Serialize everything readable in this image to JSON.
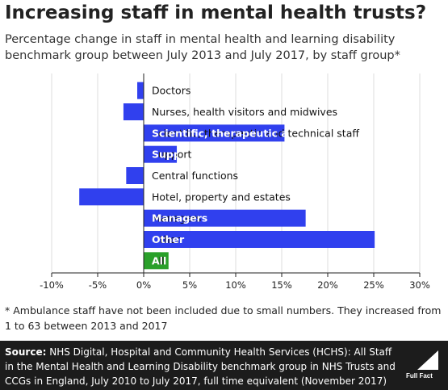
{
  "title": "Increasing staff in mental health trusts?",
  "subtitle": "Percentage change in staff in mental health and learning disability benchmark group between July 2013 and July 2017, by staff group*",
  "footnote": "* Ambulance staff have not been included due to small numbers. They increased from 1 to 63 between 2013 and 2017",
  "source": {
    "label": "Source:",
    "text": " NHS Digital, Hospital and Community Health Services (HCHS): All Staff in the Mental Health and Learning Disability benchmark group in NHS Trusts and CCGs in England, July 2010 to July 2017, full time equivalent (November 2017)"
  },
  "logo": {
    "text": "Full Fact"
  },
  "colors": {
    "bar": "#3040ee",
    "highlight": "#2aa02a",
    "axis": "#222222",
    "grid": "#dddddd"
  },
  "chart_data": {
    "type": "bar",
    "orientation": "horizontal",
    "categories": [
      "Doctors",
      "Nurses, health visitors and midwives",
      "Scientific, therapeutic and technical staff",
      "Support",
      "Central functions",
      "Hotel, property and estates",
      "Managers",
      "Other",
      "All"
    ],
    "values": [
      -0.7,
      -2.2,
      15.3,
      3.6,
      -1.9,
      -7.0,
      17.6,
      25.1,
      2.7
    ],
    "highlight_category": "All",
    "xlim": [
      -10,
      30
    ],
    "xticks": [
      -10,
      -5,
      0,
      5,
      10,
      15,
      20,
      25,
      30
    ],
    "xtick_labels": [
      "-10%",
      "-5%",
      "0%",
      "5%",
      "10%",
      "15%",
      "20%",
      "25%",
      "30%"
    ],
    "grid": true
  }
}
